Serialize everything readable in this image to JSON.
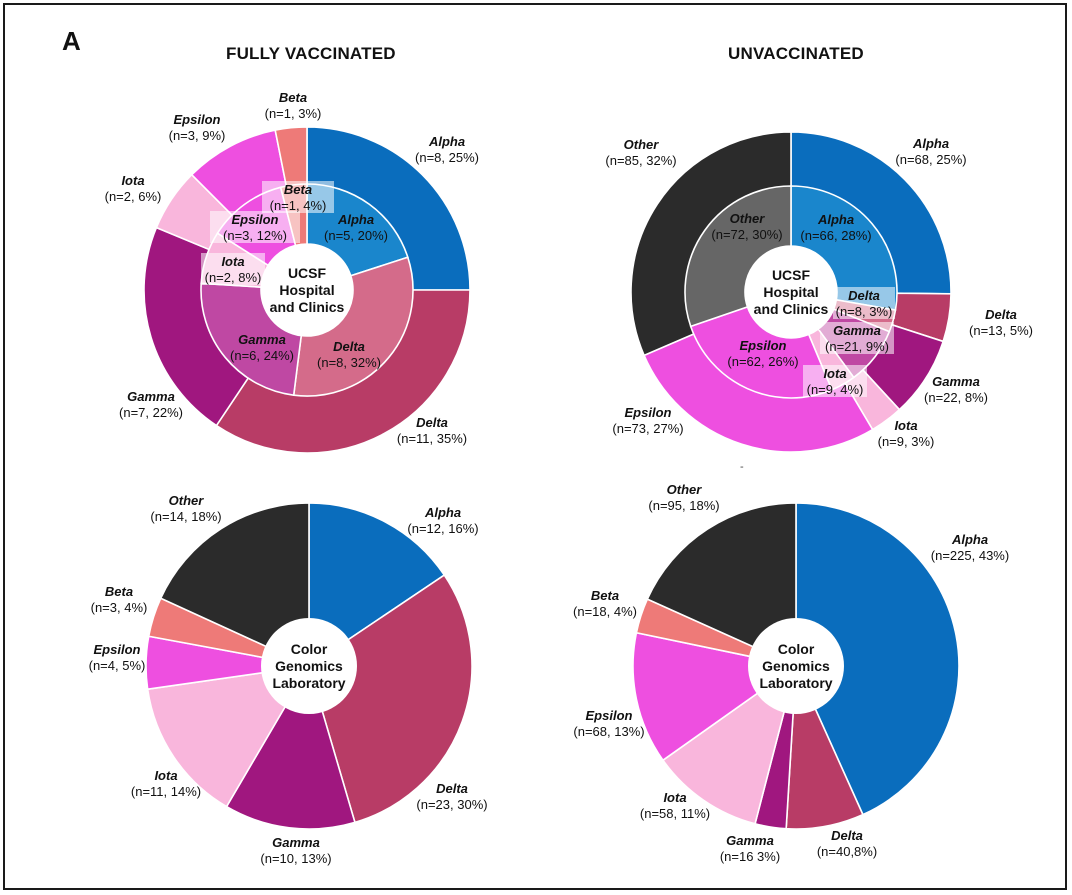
{
  "panel_letter": "A",
  "column_titles": {
    "left": "FULLY VACCINATED",
    "right": "UNVACCINATED"
  },
  "colors": {
    "Alpha_outer": "#0a6dbd",
    "Alpha_inner": "#1a86cc",
    "Delta_outer": "#b83c66",
    "Delta_inner": "#d46b8a",
    "Gamma_outer": "#a0177f",
    "Gamma_inner": "#bf48a3",
    "Iota": "#f9b6dc",
    "Epsilon": "#ee4fe0",
    "Beta": "#ee7a78",
    "Other_outer": "#2b2b2b",
    "Other_inner": "#666666"
  },
  "chart_data": [
    {
      "type": "pie",
      "variant": "double-donut",
      "column": "FULLY VACCINATED",
      "center_label": [
        "UCSF",
        "Hospital",
        "and Clinics"
      ],
      "outer": [
        {
          "name": "Alpha",
          "value": 8,
          "label": "(n=8, 25%)"
        },
        {
          "name": "Delta",
          "value": 11,
          "label": "(n=11, 35%)"
        },
        {
          "name": "Gamma",
          "value": 7,
          "label": "(n=7, 22%)"
        },
        {
          "name": "Iota",
          "value": 2,
          "label": "(n=2, 6%)"
        },
        {
          "name": "Epsilon",
          "value": 3,
          "label": "(n=3, 9%)"
        },
        {
          "name": "Beta",
          "value": 1,
          "label": "(n=1, 3%)"
        }
      ],
      "inner": [
        {
          "name": "Alpha",
          "value": 5,
          "label": "(n=5, 20%)"
        },
        {
          "name": "Delta",
          "value": 8,
          "label": "(n=8, 32%)"
        },
        {
          "name": "Gamma",
          "value": 6,
          "label": "(n=6, 24%)"
        },
        {
          "name": "Iota",
          "value": 2,
          "label": "(n=2, 8%)"
        },
        {
          "name": "Epsilon",
          "value": 3,
          "label": "(n=3, 12%)"
        },
        {
          "name": "Beta",
          "value": 1,
          "label": "(n=1, 4%)"
        }
      ]
    },
    {
      "type": "pie",
      "variant": "double-donut",
      "column": "UNVACCINATED",
      "center_label": [
        "UCSF",
        "Hospital",
        "and Clinics"
      ],
      "outer": [
        {
          "name": "Alpha",
          "value": 68,
          "label": "(n=68, 25%)"
        },
        {
          "name": "Delta",
          "value": 13,
          "label": "(n=13, 5%)"
        },
        {
          "name": "Gamma",
          "value": 22,
          "label": "(n=22, 8%)"
        },
        {
          "name": "Iota",
          "value": 9,
          "label": "(n=9, 3%)"
        },
        {
          "name": "Epsilon",
          "value": 73,
          "label": "(n=73, 27%)"
        },
        {
          "name": "Other",
          "value": 85,
          "label": "(n=85, 32%)"
        }
      ],
      "inner": [
        {
          "name": "Alpha",
          "value": 66,
          "label": "(n=66, 28%)"
        },
        {
          "name": "Delta",
          "value": 8,
          "label": "(n=8, 3%)"
        },
        {
          "name": "Gamma",
          "value": 21,
          "label": "(n=21, 9%)"
        },
        {
          "name": "Iota",
          "value": 9,
          "label": "(n=9, 4%)"
        },
        {
          "name": "Epsilon",
          "value": 62,
          "label": "(n=62, 26%)"
        },
        {
          "name": "Other",
          "value": 72,
          "label": "(n=72, 30%)"
        }
      ]
    },
    {
      "type": "pie",
      "variant": "donut",
      "column": "FULLY VACCINATED",
      "center_label": [
        "Color",
        "Genomics",
        "Laboratory"
      ],
      "slices": [
        {
          "name": "Alpha",
          "value": 12,
          "label": "(n=12, 16%)"
        },
        {
          "name": "Delta",
          "value": 23,
          "label": "(n=23, 30%)"
        },
        {
          "name": "Gamma",
          "value": 10,
          "label": "(n=10, 13%)"
        },
        {
          "name": "Iota",
          "value": 11,
          "label": "(n=11, 14%)"
        },
        {
          "name": "Epsilon",
          "value": 4,
          "label": "(n=4, 5%)"
        },
        {
          "name": "Beta",
          "value": 3,
          "label": "(n=3, 4%)"
        },
        {
          "name": "Other",
          "value": 14,
          "label": "(n=14, 18%)"
        }
      ]
    },
    {
      "type": "pie",
      "variant": "donut",
      "column": "UNVACCINATED",
      "center_label": [
        "Color",
        "Genomics",
        "Laboratory"
      ],
      "slices": [
        {
          "name": "Alpha",
          "value": 225,
          "label": "(n=225, 43%)"
        },
        {
          "name": "Delta",
          "value": 40,
          "label": "(n=40,8%)"
        },
        {
          "name": "Gamma",
          "value": 16,
          "label": "(n=16 3%)"
        },
        {
          "name": "Iota",
          "value": 58,
          "label": "(n=58, 11%)"
        },
        {
          "name": "Epsilon",
          "value": 68,
          "label": "(n=68, 13%)"
        },
        {
          "name": "Beta",
          "value": 18,
          "label": "(n=18, 4%)"
        },
        {
          "name": "Other",
          "value": 95,
          "label": "(n=95, 18%)"
        }
      ]
    }
  ]
}
